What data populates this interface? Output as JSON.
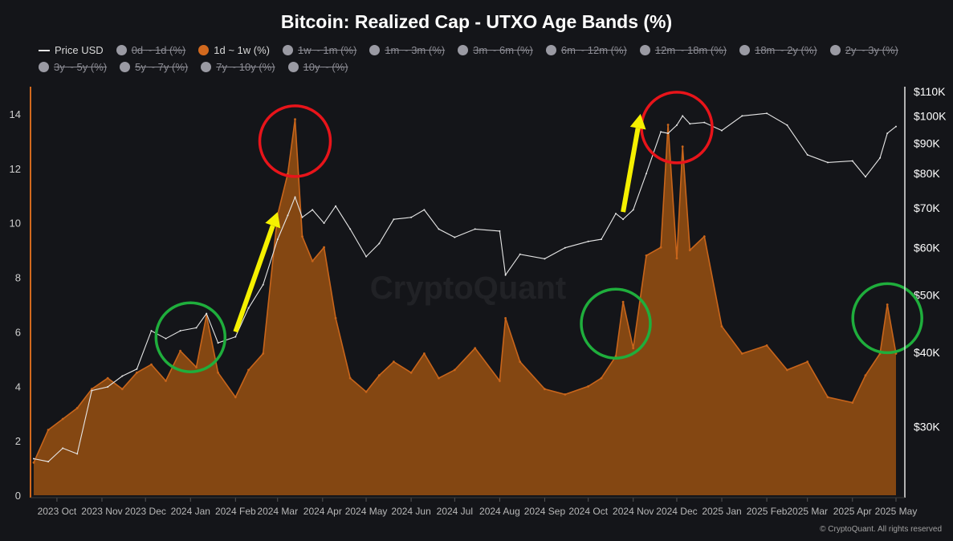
{
  "title": "Bitcoin: Realized Cap - UTXO Age Bands (%)",
  "legend": [
    {
      "label": "Price USD",
      "kind": "line",
      "color": "#e6e6e6",
      "active": true
    },
    {
      "label": "0d ~ 1d (%)",
      "kind": "dot",
      "color": "#9a9aa3",
      "active": false
    },
    {
      "label": "1d ~ 1w (%)",
      "kind": "dot",
      "color": "#d2691e",
      "active": true
    },
    {
      "label": "1w ~ 1m (%)",
      "kind": "dot",
      "color": "#9a9aa3",
      "active": false
    },
    {
      "label": "1m ~ 3m (%)",
      "kind": "dot",
      "color": "#9a9aa3",
      "active": false
    },
    {
      "label": "3m ~ 6m (%)",
      "kind": "dot",
      "color": "#9a9aa3",
      "active": false
    },
    {
      "label": "6m ~ 12m (%)",
      "kind": "dot",
      "color": "#9a9aa3",
      "active": false
    },
    {
      "label": "12m ~ 18m (%)",
      "kind": "dot",
      "color": "#9a9aa3",
      "active": false
    },
    {
      "label": "18m ~ 2y (%)",
      "kind": "dot",
      "color": "#9a9aa3",
      "active": false
    },
    {
      "label": "2y ~ 3y (%)",
      "kind": "dot",
      "color": "#9a9aa3",
      "active": false
    },
    {
      "label": "3y ~ 5y (%)",
      "kind": "dot",
      "color": "#9a9aa3",
      "active": false
    },
    {
      "label": "5y ~ 7y (%)",
      "kind": "dot",
      "color": "#9a9aa3",
      "active": false
    },
    {
      "label": "7y ~ 10y (%)",
      "kind": "dot",
      "color": "#9a9aa3",
      "active": false
    },
    {
      "label": "10y ~ (%)",
      "kind": "dot",
      "color": "#9a9aa3",
      "active": false
    }
  ],
  "watermark": "CryptoQuant",
  "credit": "© CryptoQuant. All rights reserved",
  "colors": {
    "band": "#c8651b",
    "band_fill": "#8a4a12",
    "price": "#e6e6e6",
    "accent_axis": "#d2691e",
    "red_circle": "#e8141a",
    "green_circle": "#1fae3c",
    "arrow": "#f5f000"
  },
  "chart_data": {
    "type": "area",
    "left_axis": {
      "ticks": [
        "0",
        "2",
        "4",
        "6",
        "8",
        "10",
        "12",
        "14"
      ],
      "ylim": [
        0,
        15
      ]
    },
    "right_axis": {
      "ticks": [
        "$30K",
        "$40K",
        "$50K",
        "$60K",
        "$70K",
        "$80K",
        "$90K",
        "$100K",
        "$110K"
      ],
      "scale": "log",
      "ylim": [
        23000,
        112000
      ]
    },
    "x_ticks": [
      {
        "date": "2023-10-01",
        "label": "2023 Oct"
      },
      {
        "date": "2023-11-01",
        "label": "2023 Nov"
      },
      {
        "date": "2023-12-01",
        "label": "2023 Dec"
      },
      {
        "date": "2024-01-01",
        "label": "2024 Jan"
      },
      {
        "date": "2024-02-01",
        "label": "2024 Feb"
      },
      {
        "date": "2024-03-01",
        "label": "2024 Mar"
      },
      {
        "date": "2024-04-01",
        "label": "2024 Apr"
      },
      {
        "date": "2024-05-01",
        "label": "2024 May"
      },
      {
        "date": "2024-06-01",
        "label": "2024 Jun"
      },
      {
        "date": "2024-07-01",
        "label": "2024 Jul"
      },
      {
        "date": "2024-08-01",
        "label": "2024 Aug"
      },
      {
        "date": "2024-09-01",
        "label": "2024 Sep"
      },
      {
        "date": "2024-10-01",
        "label": "2024 Oct"
      },
      {
        "date": "2024-11-01",
        "label": "2024 Nov"
      },
      {
        "date": "2024-12-01",
        "label": "2024 Dec"
      },
      {
        "date": "2025-01-01",
        "label": "2025 Jan"
      },
      {
        "date": "2025-02-01",
        "label": "2025 Feb"
      },
      {
        "date": "2025-03-01",
        "label": "2025 Mar"
      },
      {
        "date": "2025-04-01",
        "label": "2025 Apr"
      },
      {
        "date": "2025-05-01",
        "label": "2025 May"
      }
    ],
    "x_range": [
      "2023-09-15",
      "2025-05-01"
    ],
    "series": [
      {
        "name": "1d ~ 1w (%)",
        "axis": "left",
        "points": [
          [
            "2023-09-15",
            1.2
          ],
          [
            "2023-09-25",
            2.4
          ],
          [
            "2023-10-05",
            2.8
          ],
          [
            "2023-10-15",
            3.2
          ],
          [
            "2023-10-25",
            3.9
          ],
          [
            "2023-11-05",
            4.3
          ],
          [
            "2023-11-15",
            3.9
          ],
          [
            "2023-11-25",
            4.5
          ],
          [
            "2023-12-05",
            4.8
          ],
          [
            "2023-12-15",
            4.2
          ],
          [
            "2023-12-25",
            5.3
          ],
          [
            "2024-01-05",
            4.7
          ],
          [
            "2024-01-12",
            6.6
          ],
          [
            "2024-01-20",
            4.5
          ],
          [
            "2024-02-01",
            3.6
          ],
          [
            "2024-02-10",
            4.6
          ],
          [
            "2024-02-20",
            5.2
          ],
          [
            "2024-03-01",
            10.3
          ],
          [
            "2024-03-08",
            11.8
          ],
          [
            "2024-03-13",
            13.8
          ],
          [
            "2024-03-18",
            9.5
          ],
          [
            "2024-03-25",
            8.6
          ],
          [
            "2024-04-02",
            9.1
          ],
          [
            "2024-04-10",
            6.5
          ],
          [
            "2024-04-20",
            4.3
          ],
          [
            "2024-05-01",
            3.8
          ],
          [
            "2024-05-10",
            4.4
          ],
          [
            "2024-05-20",
            4.9
          ],
          [
            "2024-06-01",
            4.5
          ],
          [
            "2024-06-10",
            5.2
          ],
          [
            "2024-06-20",
            4.3
          ],
          [
            "2024-07-01",
            4.6
          ],
          [
            "2024-07-15",
            5.4
          ],
          [
            "2024-08-01",
            4.2
          ],
          [
            "2024-08-05",
            6.5
          ],
          [
            "2024-08-15",
            4.9
          ],
          [
            "2024-09-01",
            3.9
          ],
          [
            "2024-09-15",
            3.7
          ],
          [
            "2024-10-01",
            4.0
          ],
          [
            "2024-10-10",
            4.3
          ],
          [
            "2024-10-20",
            5.1
          ],
          [
            "2024-10-25",
            7.1
          ],
          [
            "2024-11-01",
            5.4
          ],
          [
            "2024-11-10",
            8.8
          ],
          [
            "2024-11-20",
            9.1
          ],
          [
            "2024-11-25",
            13.6
          ],
          [
            "2024-12-01",
            8.7
          ],
          [
            "2024-12-05",
            12.8
          ],
          [
            "2024-12-10",
            9.0
          ],
          [
            "2024-12-20",
            9.5
          ],
          [
            "2025-01-01",
            6.2
          ],
          [
            "2025-01-15",
            5.2
          ],
          [
            "2025-02-01",
            5.5
          ],
          [
            "2025-02-15",
            4.6
          ],
          [
            "2025-03-01",
            4.9
          ],
          [
            "2025-03-15",
            3.6
          ],
          [
            "2025-04-01",
            3.4
          ],
          [
            "2025-04-10",
            4.4
          ],
          [
            "2025-04-20",
            5.2
          ],
          [
            "2025-04-25",
            7.0
          ],
          [
            "2025-05-01",
            5.2
          ]
        ]
      },
      {
        "name": "Price USD",
        "axis": "right",
        "points": [
          [
            "2023-09-15",
            26500
          ],
          [
            "2023-09-25",
            26200
          ],
          [
            "2023-10-05",
            27600
          ],
          [
            "2023-10-15",
            27000
          ],
          [
            "2023-10-25",
            34500
          ],
          [
            "2023-11-05",
            35000
          ],
          [
            "2023-11-15",
            36500
          ],
          [
            "2023-11-25",
            37500
          ],
          [
            "2023-12-05",
            43500
          ],
          [
            "2023-12-15",
            42200
          ],
          [
            "2023-12-25",
            43500
          ],
          [
            "2024-01-05",
            44000
          ],
          [
            "2024-01-12",
            46500
          ],
          [
            "2024-01-20",
            41500
          ],
          [
            "2024-02-01",
            42500
          ],
          [
            "2024-02-10",
            47500
          ],
          [
            "2024-02-20",
            52000
          ],
          [
            "2024-03-01",
            62000
          ],
          [
            "2024-03-08",
            68000
          ],
          [
            "2024-03-13",
            73000
          ],
          [
            "2024-03-18",
            67500
          ],
          [
            "2024-03-25",
            69500
          ],
          [
            "2024-04-02",
            66000
          ],
          [
            "2024-04-10",
            70500
          ],
          [
            "2024-04-20",
            64500
          ],
          [
            "2024-05-01",
            58000
          ],
          [
            "2024-05-10",
            61000
          ],
          [
            "2024-05-20",
            67000
          ],
          [
            "2024-06-01",
            67500
          ],
          [
            "2024-06-10",
            69500
          ],
          [
            "2024-06-20",
            64500
          ],
          [
            "2024-07-01",
            62500
          ],
          [
            "2024-07-15",
            64500
          ],
          [
            "2024-08-01",
            64000
          ],
          [
            "2024-08-05",
            54000
          ],
          [
            "2024-08-15",
            58500
          ],
          [
            "2024-09-01",
            57500
          ],
          [
            "2024-09-15",
            60000
          ],
          [
            "2024-10-01",
            61500
          ],
          [
            "2024-10-10",
            62000
          ],
          [
            "2024-10-20",
            68500
          ],
          [
            "2024-10-25",
            67000
          ],
          [
            "2024-11-01",
            69500
          ],
          [
            "2024-11-10",
            80000
          ],
          [
            "2024-11-20",
            94000
          ],
          [
            "2024-11-25",
            93500
          ],
          [
            "2024-12-01",
            96500
          ],
          [
            "2024-12-05",
            100000
          ],
          [
            "2024-12-10",
            97000
          ],
          [
            "2024-12-20",
            97500
          ],
          [
            "2025-01-01",
            94500
          ],
          [
            "2025-01-15",
            100000
          ],
          [
            "2025-02-01",
            101000
          ],
          [
            "2025-02-15",
            96500
          ],
          [
            "2025-03-01",
            86000
          ],
          [
            "2025-03-15",
            83500
          ],
          [
            "2025-04-01",
            84000
          ],
          [
            "2025-04-10",
            79000
          ],
          [
            "2025-04-20",
            85000
          ],
          [
            "2025-04-25",
            93500
          ],
          [
            "2025-05-01",
            96000
          ]
        ]
      }
    ],
    "annotations": [
      {
        "type": "circle",
        "color": "red",
        "at": [
          "2024-03-13",
          13
        ]
      },
      {
        "type": "circle",
        "color": "red",
        "at": [
          "2024-12-01",
          13.5
        ]
      },
      {
        "type": "circle",
        "color": "green",
        "at": [
          "2024-01-01",
          5.8
        ]
      },
      {
        "type": "circle",
        "color": "green",
        "at": [
          "2024-10-20",
          6.3
        ]
      },
      {
        "type": "circle",
        "color": "green",
        "at": [
          "2025-04-25",
          6.5
        ]
      },
      {
        "type": "arrow",
        "color": "yellow",
        "from": [
          "2024-02-01",
          6
        ],
        "to": [
          "2024-03-01",
          10.4
        ]
      },
      {
        "type": "arrow",
        "color": "yellow",
        "from": [
          "2024-10-25",
          10.4
        ],
        "to": [
          "2024-11-06",
          14
        ]
      }
    ]
  }
}
